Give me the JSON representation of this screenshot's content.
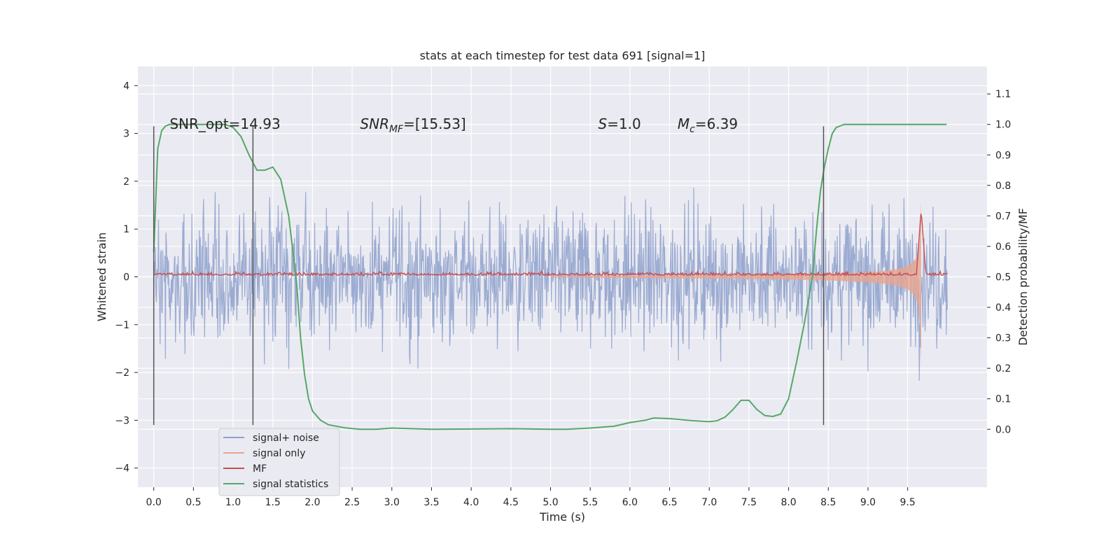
{
  "chart_data": {
    "type": "line",
    "title": "stats at each timestep for test data 691 [signal=1]",
    "xlabel": "Time (s)",
    "ylabel": "Whitened strain",
    "ylabel_right": "Detection probability/MF",
    "xlim": [
      -0.2,
      10.5
    ],
    "ylim": [
      -4.4,
      4.4
    ],
    "ylim_right": [
      -0.19,
      1.19
    ],
    "xticks": [
      0.0,
      0.5,
      1.0,
      1.5,
      2.0,
      2.5,
      3.0,
      3.5,
      4.0,
      4.5,
      5.0,
      5.5,
      6.0,
      6.5,
      7.0,
      7.5,
      8.0,
      8.5,
      9.0,
      9.5
    ],
    "xtick_labels": [
      "0.0",
      "0.5",
      "1.0",
      "1.5",
      "2.0",
      "2.5",
      "3.0",
      "3.5",
      "4.0",
      "4.5",
      "5.0",
      "5.5",
      "6.0",
      "6.5",
      "7.0",
      "7.5",
      "8.0",
      "8.5",
      "9.0",
      "9.5"
    ],
    "yticks": [
      -4,
      -3,
      -2,
      -1,
      0,
      1,
      2,
      3,
      4
    ],
    "ytick_labels": [
      "−4",
      "−3",
      "−2",
      "−1",
      "0",
      "1",
      "2",
      "3",
      "4"
    ],
    "yticks_right": [
      0.0,
      0.1,
      0.2,
      0.3,
      0.4,
      0.5,
      0.6,
      0.7,
      0.8,
      0.9,
      1.0,
      1.1
    ],
    "ytick_labels_right": [
      "0.0",
      "0.1",
      "0.2",
      "0.3",
      "0.4",
      "0.5",
      "0.6",
      "0.7",
      "0.8",
      "0.9",
      "1.0",
      "1.1"
    ],
    "grid": true,
    "legend_position": "lower-left",
    "annotations": [
      {
        "text": "SNR_opt=14.93",
        "x": 0.2,
        "y": 3.1
      },
      {
        "text": "SNR_MF=[15.53]",
        "x": 2.6,
        "y": 3.1
      },
      {
        "text": "S=1.0",
        "x": 5.6,
        "y": 3.1
      },
      {
        "text": "M_c=6.39",
        "x": 6.6,
        "y": 3.1
      }
    ],
    "vlines": [
      {
        "x": 0.0,
        "ymin": -3.1,
        "ymax": 3.15
      },
      {
        "x": 1.25,
        "ymin": -3.1,
        "ymax": 3.15
      },
      {
        "x": 8.44,
        "ymin": -3.1,
        "ymax": 3.15
      }
    ],
    "series": [
      {
        "name": "signal+ noise",
        "axis": "left",
        "kind": "noise",
        "color": "#8da0cb",
        "t_range": [
          0.0,
          10.0
        ],
        "amplitude": 2.1,
        "n": 1500
      },
      {
        "name": "signal only",
        "axis": "left",
        "kind": "chirp",
        "color": "#e8a58f",
        "t_merge": 9.67,
        "amp_min": 0.005,
        "amp_max": 1.6
      },
      {
        "name": "MF",
        "axis": "right",
        "kind": "mf",
        "color": "#c44e52",
        "baseline": 0.505,
        "peak": {
          "x": 9.67,
          "y": 0.72
        }
      },
      {
        "name": "signal statistics",
        "axis": "right",
        "color": "#55a868",
        "x": [
          0.0,
          0.05,
          0.1,
          0.15,
          0.2,
          0.3,
          0.5,
          0.7,
          0.9,
          1.0,
          1.1,
          1.2,
          1.3,
          1.4,
          1.5,
          1.6,
          1.7,
          1.8,
          1.85,
          1.9,
          1.95,
          2.0,
          2.1,
          2.2,
          2.4,
          2.6,
          2.8,
          3.0,
          3.5,
          4.0,
          4.5,
          5.0,
          5.2,
          5.5,
          5.8,
          6.0,
          6.2,
          6.3,
          6.5,
          6.8,
          7.0,
          7.1,
          7.2,
          7.3,
          7.4,
          7.5,
          7.6,
          7.7,
          7.8,
          7.9,
          8.0,
          8.1,
          8.2,
          8.3,
          8.35,
          8.4,
          8.45,
          8.5,
          8.55,
          8.6,
          8.7,
          8.8,
          9.0,
          9.5,
          9.99
        ],
        "y": [
          0.58,
          0.92,
          0.98,
          0.995,
          1.0,
          1.0,
          1.0,
          1.0,
          1.0,
          0.99,
          0.96,
          0.9,
          0.85,
          0.85,
          0.86,
          0.82,
          0.7,
          0.48,
          0.3,
          0.18,
          0.1,
          0.06,
          0.03,
          0.015,
          0.005,
          0.0,
          0.0,
          0.004,
          0.0,
          0.001,
          0.002,
          0.0,
          0.0,
          0.004,
          0.01,
          0.022,
          0.03,
          0.037,
          0.035,
          0.028,
          0.025,
          0.028,
          0.04,
          0.065,
          0.095,
          0.095,
          0.065,
          0.045,
          0.042,
          0.05,
          0.1,
          0.22,
          0.35,
          0.5,
          0.65,
          0.78,
          0.86,
          0.92,
          0.97,
          0.99,
          1.0,
          1.0,
          1.0,
          1.0,
          1.0
        ]
      }
    ]
  }
}
